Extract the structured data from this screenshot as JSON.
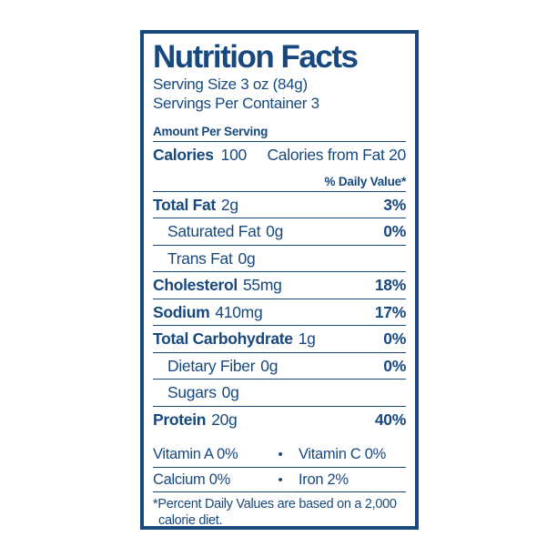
{
  "label": {
    "title": "Nutrition Facts",
    "serving_size": "Serving Size 3 oz (84g)",
    "servings_per_container": "Servings Per Container 3",
    "amount_per_serving": "Amount Per Serving",
    "calories": {
      "label": "Calories",
      "value": "100",
      "from_fat": "Calories from Fat 20"
    },
    "daily_value_header": "% Daily Value*",
    "nutrients": [
      {
        "name": "Total Fat",
        "amount": "2g",
        "dv": "3%"
      },
      {
        "name": "Saturated Fat",
        "amount": "0g",
        "dv": "0%"
      },
      {
        "name": "Trans Fat",
        "amount": "0g",
        "dv": ""
      },
      {
        "name": "Cholesterol",
        "amount": "55mg",
        "dv": "18%"
      },
      {
        "name": "Sodium",
        "amount": "410mg",
        "dv": "17%"
      },
      {
        "name": "Total Carbohydrate",
        "amount": "1g",
        "dv": "0%"
      },
      {
        "name": "Dietary Fiber",
        "amount": "0g",
        "dv": "0%"
      },
      {
        "name": "Sugars",
        "amount": "0g",
        "dv": ""
      },
      {
        "name": "Protein",
        "amount": "20g",
        "dv": "40%"
      }
    ],
    "micronutrients": {
      "bullet": "•",
      "row1_left": "Vitamin A 0%",
      "row1_right": "Vitamin C 0%",
      "row2_left": "Calcium 0%",
      "row2_right": "Iron 2%"
    },
    "footnote_line1": "*Percent Daily Values are based on a 2,000",
    "footnote_line2": "calorie diet.",
    "colors": {
      "blue": "#17497E",
      "background": "#ffffff"
    }
  }
}
